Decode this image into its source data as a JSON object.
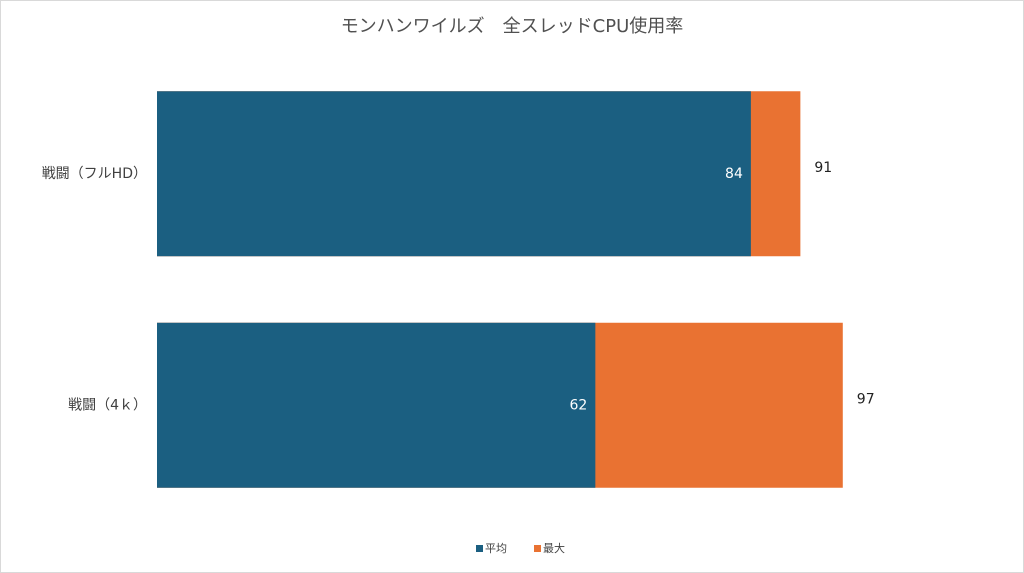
{
  "chart_data": {
    "type": "bar",
    "orientation": "horizontal",
    "barmode": "overlay",
    "title": "モンハンワイルズ　全スレッドCPU使用率",
    "categories": [
      "戦闘（フルHD）",
      "戦闘（4ｋ）"
    ],
    "series": [
      {
        "name": "平均",
        "color": "#1b5f81",
        "values": [
          84,
          62
        ]
      },
      {
        "name": "最大",
        "color": "#e97232",
        "values": [
          91,
          97
        ]
      }
    ],
    "xlim": [
      0,
      100
    ],
    "legend": "bottom"
  }
}
